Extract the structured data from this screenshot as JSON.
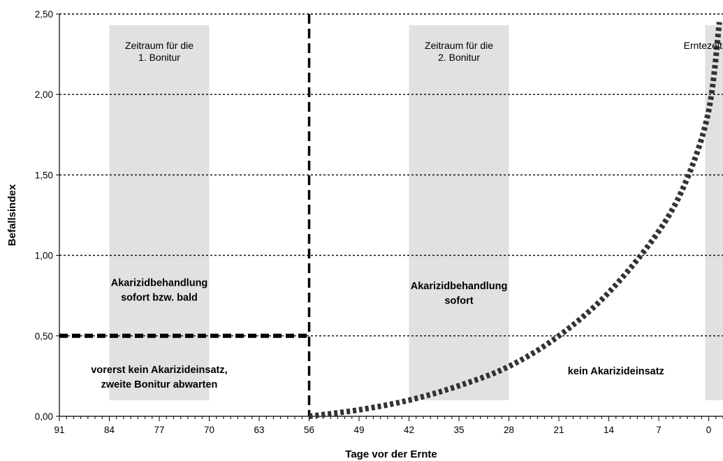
{
  "chart_data": {
    "type": "line",
    "title": "",
    "xlabel": "Tage vor der Ernte",
    "ylabel": "Befallsindex",
    "x_reversed": true,
    "xlim": [
      91,
      -2
    ],
    "ylim": [
      0,
      2.5
    ],
    "x_ticks": [
      91,
      84,
      77,
      70,
      63,
      56,
      49,
      42,
      35,
      28,
      21,
      14,
      7,
      0
    ],
    "y_ticks": [
      "0,00",
      "0,50",
      "1,00",
      "1,50",
      "2,00",
      "2,50"
    ],
    "y_tick_values": [
      0,
      0.5,
      1.0,
      1.5,
      2.0,
      2.5
    ],
    "grid": "horizontal-dotted",
    "colors": {
      "band": "#e1e1e1",
      "line": "#000000",
      "threshold_curve": "#333333"
    },
    "bands": [
      {
        "label_lines": [
          "Zeitraum für die",
          "1. Bonitur"
        ],
        "x_from": 84,
        "x_to": 70,
        "y_from": 0.1,
        "y_to": 2.43
      },
      {
        "label_lines": [
          "Zeitraum für die",
          "2. Bonitur"
        ],
        "x_from": 42,
        "x_to": 28,
        "y_from": 0.1,
        "y_to": 2.43
      },
      {
        "label_lines": [
          "Erntezeitraum"
        ],
        "x_from": 0.5,
        "x_to": -2,
        "y_from": 0.1,
        "y_to": 2.43
      }
    ],
    "threshold_horizontal": {
      "y": 0.5,
      "x_from": 91,
      "x_to": 56
    },
    "threshold_vertical": {
      "x": 56,
      "y_from": 0,
      "y_to": 2.5
    },
    "series": [
      {
        "style": "dotted-thick",
        "x": [
          56,
          49,
          42,
          35,
          28,
          21,
          14,
          7,
          3,
          0,
          -1.5
        ],
        "y": [
          0.0,
          0.04,
          0.1,
          0.19,
          0.31,
          0.5,
          0.77,
          1.15,
          1.48,
          1.9,
          2.45
        ]
      }
    ],
    "annotations": [
      {
        "lines": [
          "Akarizidbehandlung",
          "sofort bzw. bald"
        ],
        "x": 77,
        "y": 0.81
      },
      {
        "lines": [
          "Akarizidbehandlung",
          "sofort"
        ],
        "x": 35,
        "y": 0.79
      },
      {
        "lines": [
          "vorerst kein Akarizideinsatz,",
          "zweite Bonitur abwarten"
        ],
        "x": 77,
        "y": 0.27
      },
      {
        "lines": [
          "kein Akarizideinsatz"
        ],
        "x": 13,
        "y": 0.26
      }
    ]
  }
}
